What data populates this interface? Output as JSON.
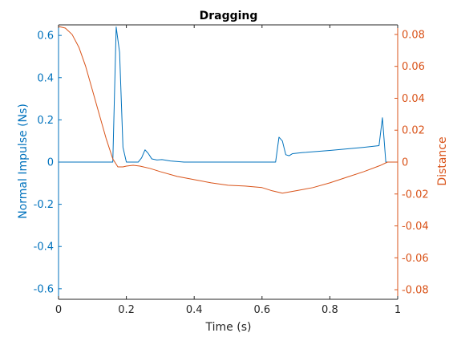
{
  "chart_data": {
    "type": "line",
    "title": "Dragging",
    "xlabel": "Time (s)",
    "xlim": [
      0,
      1
    ],
    "xticks": [
      "0",
      "0.2",
      "0.4",
      "0.6",
      "0.8",
      "1"
    ],
    "xtick_values": [
      0,
      0.2,
      0.4,
      0.6,
      0.8,
      1
    ],
    "left_axis": {
      "label": "Normal Impulse (Ns)",
      "color": "#0072bd",
      "ylim": [
        -0.65,
        0.65
      ],
      "ticks": [
        "0.6",
        "0.4",
        "0.2",
        "0",
        "-0.2",
        "-0.4",
        "-0.6"
      ],
      "tick_values": [
        0.6,
        0.4,
        0.2,
        0,
        -0.2,
        -0.4,
        -0.6
      ]
    },
    "right_axis": {
      "label": "Distance",
      "color": "#d95319",
      "ylim": [
        -0.086,
        0.086
      ],
      "ticks": [
        "0.08",
        "0.06",
        "0.04",
        "0.02",
        "0",
        "-0.02",
        "-0.04",
        "-0.06",
        "-0.08"
      ],
      "tick_values": [
        0.08,
        0.06,
        0.04,
        0.02,
        0,
        -0.02,
        -0.04,
        -0.06,
        -0.08
      ]
    },
    "series": [
      {
        "axis": "left",
        "color": "#0072bd",
        "points": [
          [
            0,
            0
          ],
          [
            0.16,
            0
          ],
          [
            0.17,
            0.64
          ],
          [
            0.18,
            0.52
          ],
          [
            0.19,
            0.07
          ],
          [
            0.2,
            0
          ],
          [
            0.235,
            0
          ],
          [
            0.245,
            0.02
          ],
          [
            0.255,
            0.058
          ],
          [
            0.265,
            0.04
          ],
          [
            0.275,
            0.015
          ],
          [
            0.29,
            0.01
          ],
          [
            0.305,
            0.012
          ],
          [
            0.33,
            0.005
          ],
          [
            0.37,
            0
          ],
          [
            0.45,
            0
          ],
          [
            0.55,
            0
          ],
          [
            0.64,
            0
          ],
          [
            0.65,
            0.118
          ],
          [
            0.66,
            0.1
          ],
          [
            0.67,
            0.035
          ],
          [
            0.68,
            0.03
          ],
          [
            0.69,
            0.04
          ],
          [
            0.72,
            0.045
          ],
          [
            0.8,
            0.055
          ],
          [
            0.9,
            0.07
          ],
          [
            0.945,
            0.078
          ],
          [
            0.955,
            0.21
          ],
          [
            0.965,
            0
          ],
          [
            1,
            0
          ]
        ]
      },
      {
        "axis": "right",
        "color": "#d95319",
        "points": [
          [
            0,
            0.085
          ],
          [
            0.02,
            0.084
          ],
          [
            0.04,
            0.08
          ],
          [
            0.06,
            0.072
          ],
          [
            0.08,
            0.06
          ],
          [
            0.1,
            0.045
          ],
          [
            0.12,
            0.03
          ],
          [
            0.14,
            0.015
          ],
          [
            0.16,
            0.002
          ],
          [
            0.175,
            -0.003
          ],
          [
            0.19,
            -0.003
          ],
          [
            0.2,
            -0.0025
          ],
          [
            0.22,
            -0.002
          ],
          [
            0.24,
            -0.0025
          ],
          [
            0.27,
            -0.004
          ],
          [
            0.3,
            -0.006
          ],
          [
            0.35,
            -0.009
          ],
          [
            0.4,
            -0.011
          ],
          [
            0.45,
            -0.013
          ],
          [
            0.5,
            -0.0145
          ],
          [
            0.55,
            -0.015
          ],
          [
            0.6,
            -0.016
          ],
          [
            0.63,
            -0.018
          ],
          [
            0.66,
            -0.0195
          ],
          [
            0.7,
            -0.018
          ],
          [
            0.75,
            -0.016
          ],
          [
            0.8,
            -0.013
          ],
          [
            0.85,
            -0.0095
          ],
          [
            0.9,
            -0.006
          ],
          [
            0.95,
            -0.002
          ],
          [
            0.97,
            0
          ],
          [
            1,
            0
          ]
        ]
      }
    ]
  }
}
